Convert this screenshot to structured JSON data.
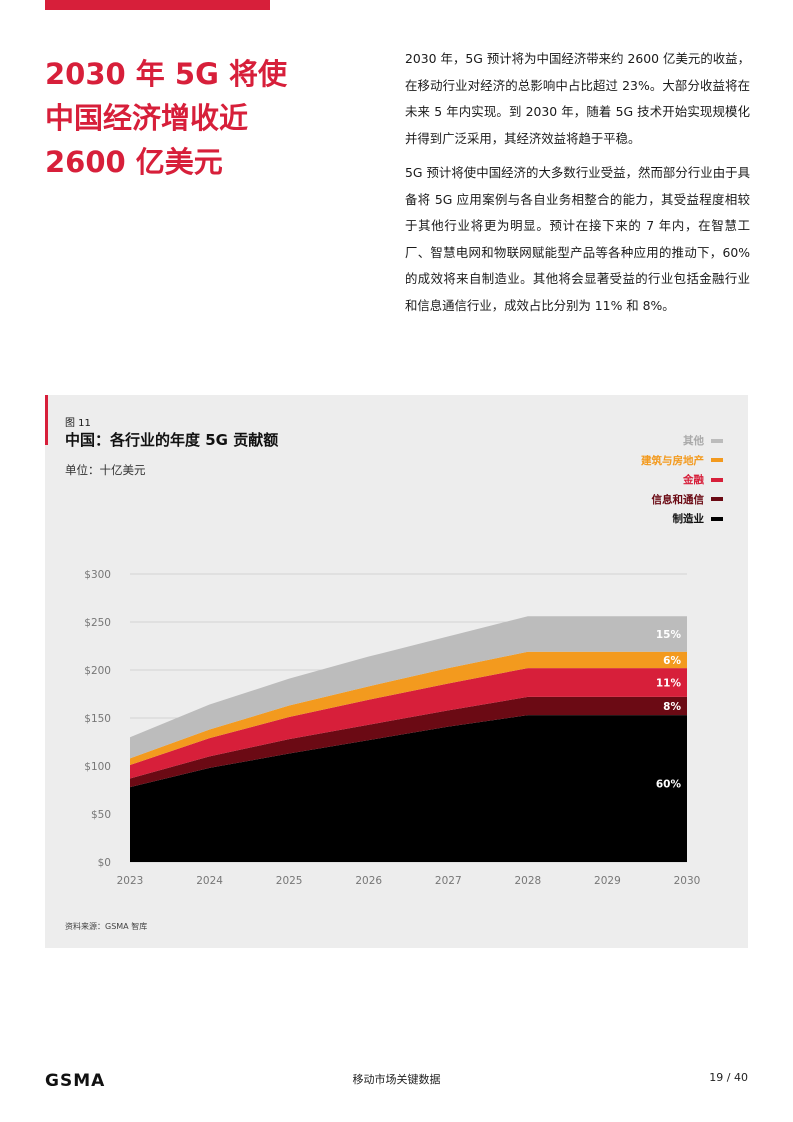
{
  "headline": {
    "line1": "2030 年 5G 将使",
    "line2": "中国经济增收近",
    "line3": "2600 亿美元"
  },
  "body": {
    "p1": "2030 年，5G 预计将为中国经济带来约 2600 亿美元的收益，在移动行业对经济的总影响中占比超过 23%。大部分收益将在未来 5 年内实现。到 2030 年，随着 5G 技术开始实现规模化并得到广泛采用，其经济效益将趋于平稳。",
    "p2": "5G 预计将使中国经济的大多数行业受益，然而部分行业由于具备将 5G 应用案例与各自业务相整合的能力，其受益程度相较于其他行业将更为明显。预计在接下来的 7 年内，在智慧工厂、智慧电网和物联网赋能型产品等各种应用的推动下，60% 的成效将来自制造业。其他将会显著受益的行业包括金融行业和信息通信行业，成效占比分别为 11% 和 8%。"
  },
  "figure": {
    "label": "图 11",
    "title": "中国：各行业的年度 5G 贡献额",
    "unit": "单位：十亿美元",
    "source": "资料来源：GSMA 智库"
  },
  "chart_data": {
    "type": "area",
    "stacked": true,
    "x": [
      2023,
      2024,
      2025,
      2026,
      2027,
      2028,
      2029,
      2030
    ],
    "ylim": [
      0,
      300
    ],
    "yticks": [
      0,
      50,
      100,
      150,
      200,
      250,
      300
    ],
    "ytick_labels": [
      "$0",
      "$50",
      "$100",
      "$150",
      "$200",
      "$250",
      "$300"
    ],
    "grid": true,
    "legend_position": "top-right",
    "series": [
      {
        "name": "制造业",
        "color": "#000000",
        "values": [
          78,
          98,
          113,
          127,
          141,
          153,
          153,
          153
        ]
      },
      {
        "name": "信息和通信",
        "color": "#6b0a14",
        "values": [
          9,
          12,
          15,
          16,
          17,
          19,
          19,
          19
        ]
      },
      {
        "name": "金融",
        "color": "#d71f3a",
        "values": [
          14,
          19,
          23,
          26,
          28,
          30,
          30,
          30
        ]
      },
      {
        "name": "建筑与房地产",
        "color": "#f39a1e",
        "values": [
          7,
          9,
          12,
          14,
          16,
          17,
          17,
          17
        ]
      },
      {
        "name": "其他",
        "color": "#bcbcbc",
        "values": [
          22,
          26,
          28,
          31,
          33,
          37,
          37,
          37
        ]
      }
    ],
    "annotations": [
      {
        "series": "其他",
        "text": "15%"
      },
      {
        "series": "建筑与房地产",
        "text": "6%"
      },
      {
        "series": "金融",
        "text": "11%"
      },
      {
        "series": "信息和通信",
        "text": "8%"
      },
      {
        "series": "制造业",
        "text": "60%"
      }
    ]
  },
  "footer": {
    "logo": "GSMA",
    "center": "移动市场关键数据",
    "page": "19 / 40"
  }
}
